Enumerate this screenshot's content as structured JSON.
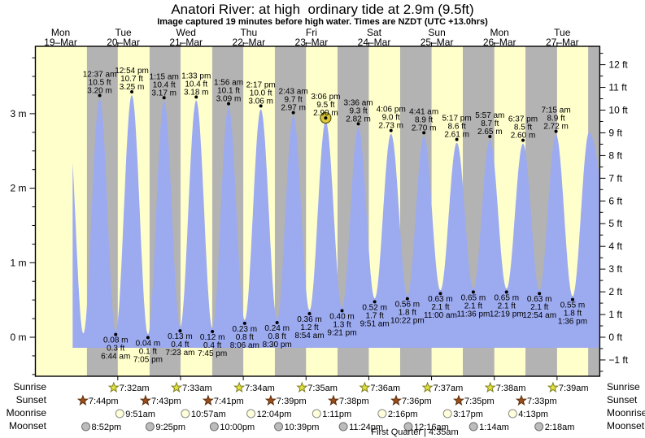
{
  "title": "Anatori River: at high  ordinary tide at 2.9m (9.5ft)",
  "subtitle": "Image captured 19 minutes before high water. Times are NZDT (UTC +13.0hrs)",
  "colors": {
    "day_band": "#ffffcc",
    "night_band": "#b3b3b3",
    "tide_fill": "#9caaf0",
    "day_label_red": "#f43c3c",
    "highlight_fill": "#ddc83c",
    "highlight_stroke": "#55550f",
    "sunrise_star_fill": "#e2e23e",
    "sunrise_star_stroke": "#7d7d1f",
    "sunset_star_fill": "#9a4f1b",
    "sunset_star_stroke": "#5c2e0d",
    "moonrise_circle_fill": "#ffffd9",
    "moonrise_circle_stroke": "#8a8a8a",
    "moonset_circle_fill": "#bcbcbc",
    "moonset_circle_stroke": "#6e6e6e"
  },
  "chart_data": {
    "type": "area",
    "title": "Anatori River: at high  ordinary tide at 2.9m (9.5ft)",
    "subtitle": "Image captured 19 minutes before high water. Times are NZDT (UTC +13.0hrs)",
    "ylim_m": [
      -0.5,
      3.9
    ],
    "x_days": [
      {
        "weekday": "Mon",
        "date": "19–Mar"
      },
      {
        "weekday": "Tue",
        "date": "20–Mar"
      },
      {
        "weekday": "Wed",
        "date": "21–Mar"
      },
      {
        "weekday": "Thu",
        "date": "22–Mar"
      },
      {
        "weekday": "Fri",
        "date": "23–Mar"
      },
      {
        "weekday": "Sat",
        "date": "24–Mar"
      },
      {
        "weekday": "Sun",
        "date": "25–Mar"
      },
      {
        "weekday": "Mon",
        "date": "26–Mar"
      },
      {
        "weekday": "Tue",
        "date": "27–Mar"
      }
    ],
    "y_axis_left": {
      "unit": "m",
      "ticks": [
        3,
        2,
        1,
        0
      ],
      "tick_labels": [
        "3 m",
        "2 m",
        "1 m",
        "0 m"
      ]
    },
    "y_axis_right": {
      "unit": "ft",
      "ticks": [
        12,
        11,
        10,
        9,
        8,
        7,
        6,
        5,
        4,
        3,
        2,
        1,
        0,
        -1
      ],
      "tick_labels": [
        "12 ft",
        "11 ft",
        "10 ft",
        "9 ft",
        "8 ft",
        "7 ft",
        "6 ft",
        "5 ft",
        "4 ft",
        "3 ft",
        "2 ft",
        "1 ft",
        "0 ft",
        "−1 ft"
      ]
    },
    "high_tides": [
      {
        "day": 1,
        "time": "12:37 am",
        "ft_label": "10.5 ft",
        "m_label": "3.20 m",
        "height_m": 3.2,
        "highlighted": false
      },
      {
        "day": 1,
        "time": "12:54 pm",
        "ft_label": "10.7 ft",
        "m_label": "3.25 m",
        "height_m": 3.25,
        "highlighted": false
      },
      {
        "day": 2,
        "time": "1:15 am",
        "ft_label": "10.4 ft",
        "m_label": "3.17 m",
        "height_m": 3.17,
        "highlighted": false
      },
      {
        "day": 2,
        "time": "1:33 pm",
        "ft_label": "10.4 ft",
        "m_label": "3.18 m",
        "height_m": 3.18,
        "highlighted": false
      },
      {
        "day": 3,
        "time": "1:56 am",
        "ft_label": "10.1 ft",
        "m_label": "3.09 m",
        "height_m": 3.09,
        "highlighted": false
      },
      {
        "day": 3,
        "time": "2:17 pm",
        "ft_label": "10.0 ft",
        "m_label": "3.06 m",
        "height_m": 3.06,
        "highlighted": false
      },
      {
        "day": 4,
        "time": "2:43 am",
        "ft_label": "9.7 ft",
        "m_label": "2.97 m",
        "height_m": 2.97,
        "highlighted": false
      },
      {
        "day": 4,
        "time": "3:06 pm",
        "ft_label": "9.5 ft",
        "m_label": "2.90 m",
        "height_m": 2.9,
        "highlighted": true
      },
      {
        "day": 5,
        "time": "3:36 am",
        "ft_label": "9.3 ft",
        "m_label": "2.82 m",
        "height_m": 2.82,
        "highlighted": false
      },
      {
        "day": 5,
        "time": "4:06 pm",
        "ft_label": "9.0 ft",
        "m_label": "2.73 m",
        "height_m": 2.73,
        "highlighted": false
      },
      {
        "day": 6,
        "time": "4:41 am",
        "ft_label": "8.9 ft",
        "m_label": "2.70 m",
        "height_m": 2.7,
        "highlighted": false
      },
      {
        "day": 6,
        "time": "5:17 pm",
        "ft_label": "8.6 ft",
        "m_label": "2.61 m",
        "height_m": 2.61,
        "highlighted": false
      },
      {
        "day": 7,
        "time": "5:57 am",
        "ft_label": "8.7 ft",
        "m_label": "2.65 m",
        "height_m": 2.65,
        "highlighted": false
      },
      {
        "day": 7,
        "time": "6:37 pm",
        "ft_label": "8.5 ft",
        "m_label": "2.60 m",
        "height_m": 2.6,
        "highlighted": false
      },
      {
        "day": 8,
        "time": "7:15 am",
        "ft_label": "8.9 ft",
        "m_label": "2.72 m",
        "height_m": 2.72,
        "highlighted": false
      }
    ],
    "low_tides": [
      {
        "day": 1,
        "time": "6:44 am",
        "ft_label": "0.3 ft",
        "m_label": "0.08 m",
        "height_m": 0.08
      },
      {
        "day": 1,
        "time": "7:05 pm",
        "ft_label": "0.1 ft",
        "m_label": "0.04 m",
        "height_m": 0.04
      },
      {
        "day": 2,
        "time": "7:23 am",
        "ft_label": "0.4 ft",
        "m_label": "0.13 m",
        "height_m": 0.13
      },
      {
        "day": 2,
        "time": "7:45 pm",
        "ft_label": "0.4 ft",
        "m_label": "0.12 m",
        "height_m": 0.12
      },
      {
        "day": 3,
        "time": "8:06 am",
        "ft_label": "0.8 ft",
        "m_label": "0.23 m",
        "height_m": 0.23
      },
      {
        "day": 3,
        "time": "8:30 pm",
        "ft_label": "0.8 ft",
        "m_label": "0.24 m",
        "height_m": 0.24
      },
      {
        "day": 4,
        "time": "8:54 am",
        "ft_label": "1.2 ft",
        "m_label": "0.36 m",
        "height_m": 0.36
      },
      {
        "day": 4,
        "time": "9:21 pm",
        "ft_label": "1.3 ft",
        "m_label": "0.40 m",
        "height_m": 0.4
      },
      {
        "day": 5,
        "time": "9:51 am",
        "ft_label": "1.7 ft",
        "m_label": "0.52 m",
        "height_m": 0.52
      },
      {
        "day": 5,
        "time": "10:22 pm",
        "ft_label": "1.8 ft",
        "m_label": "0.56 m",
        "height_m": 0.56
      },
      {
        "day": 6,
        "time": "11:00 am",
        "ft_label": "2.1 ft",
        "m_label": "0.63 m",
        "height_m": 0.63
      },
      {
        "day": 6,
        "time": "11:36 pm",
        "ft_label": "2.1 ft",
        "m_label": "0.65 m",
        "height_m": 0.65
      },
      {
        "day": 7,
        "time": "12:19 pm",
        "ft_label": "2.1 ft",
        "m_label": "0.65 m",
        "height_m": 0.65
      },
      {
        "day": 8,
        "time": "12:54 am",
        "ft_label": "2.1 ft",
        "m_label": "0.63 m",
        "height_m": 0.63
      },
      {
        "day": 8,
        "time": "1:36 pm",
        "ft_label": "1.8 ft",
        "m_label": "0.55 m",
        "height_m": 0.55
      }
    ],
    "curve_edge_extremes": [
      {
        "day": 0,
        "time": "12:35 pm",
        "height_m": 2.9
      },
      {
        "day": 0,
        "time": "6:20 pm",
        "height_m": 0.05
      },
      {
        "day": 8,
        "time": "7:55 pm",
        "height_m": 2.75
      }
    ]
  },
  "astro": {
    "rows": [
      {
        "id": "sunrise",
        "label": "Sunrise",
        "icon": "sunrise-star-icon",
        "events": [
          {
            "day": 1,
            "time": "7:32am"
          },
          {
            "day": 2,
            "time": "7:33am"
          },
          {
            "day": 3,
            "time": "7:34am"
          },
          {
            "day": 4,
            "time": "7:35am"
          },
          {
            "day": 5,
            "time": "7:36am"
          },
          {
            "day": 6,
            "time": "7:37am"
          },
          {
            "day": 7,
            "time": "7:38am"
          },
          {
            "day": 8,
            "time": "7:39am"
          }
        ]
      },
      {
        "id": "sunset",
        "label": "Sunset",
        "icon": "sunset-star-icon",
        "events": [
          {
            "day": 0,
            "time": "7:44pm"
          },
          {
            "day": 1,
            "time": "7:43pm"
          },
          {
            "day": 2,
            "time": "7:41pm"
          },
          {
            "day": 3,
            "time": "7:39pm"
          },
          {
            "day": 4,
            "time": "7:38pm"
          },
          {
            "day": 5,
            "time": "7:36pm"
          },
          {
            "day": 6,
            "time": "7:35pm"
          },
          {
            "day": 7,
            "time": "7:33pm"
          }
        ]
      },
      {
        "id": "moonrise",
        "label": "Moonrise",
        "icon": "moonrise-circle-icon",
        "events": [
          {
            "day": 1,
            "time": "9:51am"
          },
          {
            "day": 2,
            "time": "10:57am"
          },
          {
            "day": 3,
            "time": "12:04pm"
          },
          {
            "day": 4,
            "time": "1:11pm"
          },
          {
            "day": 5,
            "time": "2:16pm"
          },
          {
            "day": 6,
            "time": "3:17pm"
          },
          {
            "day": 7,
            "time": "4:13pm"
          }
        ]
      },
      {
        "id": "moonset",
        "label": "Moonset",
        "icon": "moonset-circle-icon",
        "events": [
          {
            "day": 0,
            "time": "8:52pm"
          },
          {
            "day": 1,
            "time": "9:25pm"
          },
          {
            "day": 2,
            "time": "10:00pm"
          },
          {
            "day": 3,
            "time": "10:39pm"
          },
          {
            "day": 4,
            "time": "11:24pm"
          },
          {
            "day": 6,
            "time": "12:16am"
          },
          {
            "day": 7,
            "time": "1:14am"
          },
          {
            "day": 8,
            "time": "2:18am"
          }
        ]
      }
    ],
    "moon_phase": "First Quarter | 4:35am"
  }
}
